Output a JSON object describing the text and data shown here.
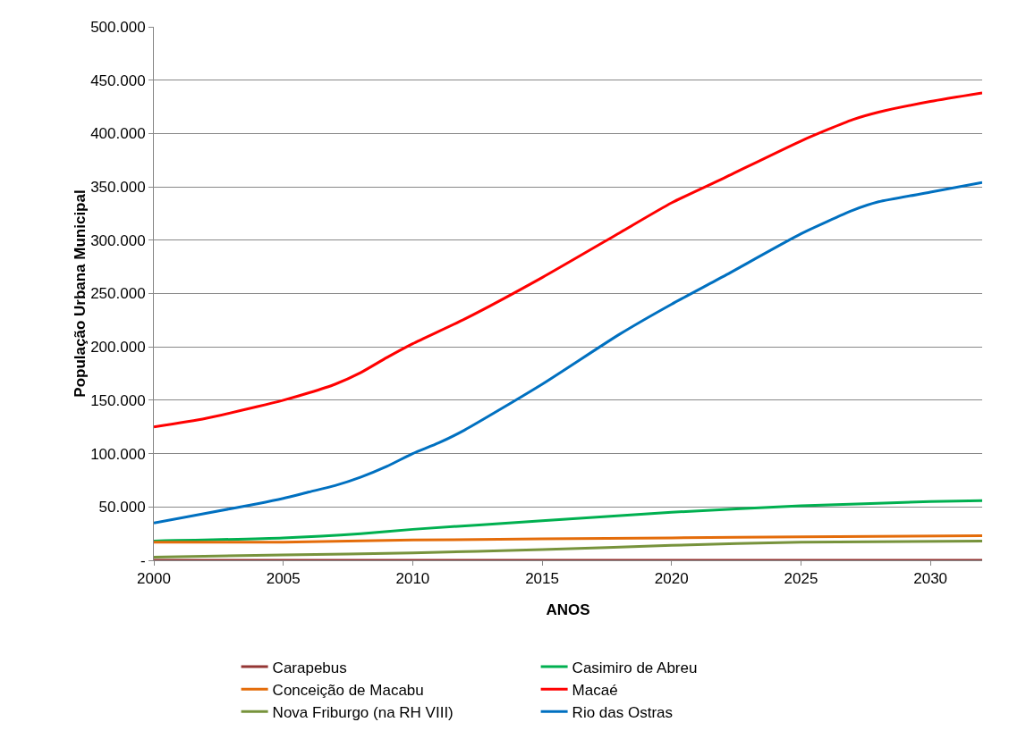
{
  "chart_data": {
    "type": "line",
    "xlabel": "ANOS",
    "ylabel": "População Urbana Municipal",
    "xlim": [
      2000,
      2032
    ],
    "xticks": [
      2000,
      2005,
      2010,
      2015,
      2020,
      2025,
      2030
    ],
    "ylim": [
      0,
      500000
    ],
    "yticks": [
      {
        "value": 0,
        "label": "-"
      },
      {
        "value": 50000,
        "label": "50.000"
      },
      {
        "value": 100000,
        "label": "100.000"
      },
      {
        "value": 150000,
        "label": "150.000"
      },
      {
        "value": 200000,
        "label": "200.000"
      },
      {
        "value": 250000,
        "label": "250.000"
      },
      {
        "value": 300000,
        "label": "300.000"
      },
      {
        "value": 350000,
        "label": "350.000"
      },
      {
        "value": 400000,
        "label": "400.000"
      },
      {
        "value": 450000,
        "label": "450.000"
      },
      {
        "value": 500000,
        "label": "500.000"
      }
    ],
    "grid": "y",
    "legend": "bottom",
    "marker": "none",
    "line_style": "solid",
    "series": [
      {
        "name": "Carapebus",
        "color": "#943634",
        "x": [
          2000,
          2010,
          2020,
          2032
        ],
        "values": [
          0,
          0,
          0,
          0
        ]
      },
      {
        "name": "Casimiro de Abreu",
        "color": "#00b050",
        "x": [
          2000,
          2005,
          2008,
          2010,
          2015,
          2020,
          2025,
          2030,
          2032
        ],
        "values": [
          18000,
          21000,
          25000,
          29000,
          37000,
          45000,
          51000,
          55000,
          56000
        ]
      },
      {
        "name": "Conceição de Macabu",
        "color": "#e46c0a",
        "x": [
          2000,
          2005,
          2010,
          2015,
          2020,
          2025,
          2032
        ],
        "values": [
          17000,
          17000,
          19000,
          20000,
          21000,
          22000,
          23000
        ]
      },
      {
        "name": "Macaé",
        "color": "#ff0000",
        "x": [
          2000,
          2002,
          2004,
          2005,
          2006,
          2007,
          2008,
          2009,
          2010,
          2012,
          2015,
          2018,
          2020,
          2022,
          2025,
          2027,
          2028,
          2030,
          2032
        ],
        "values": [
          125000,
          133000,
          144000,
          150000,
          157000,
          165000,
          176000,
          190000,
          203000,
          226000,
          265000,
          307000,
          335000,
          358000,
          393000,
          413000,
          420000,
          430000,
          438000
        ]
      },
      {
        "name": "Nova Friburgo (na RH VIII)",
        "color": "#77933c",
        "x": [
          2000,
          2005,
          2010,
          2015,
          2020,
          2025,
          2032
        ],
        "values": [
          3000,
          5000,
          7000,
          10000,
          14000,
          17000,
          18000
        ]
      },
      {
        "name": "Rio das Ostras",
        "color": "#0070c0",
        "x": [
          2000,
          2002,
          2004,
          2005,
          2006,
          2007,
          2008,
          2009,
          2010,
          2011,
          2012,
          2015,
          2018,
          2020,
          2022,
          2025,
          2027,
          2028,
          2030,
          2032
        ],
        "values": [
          35000,
          44000,
          53000,
          58000,
          64000,
          70000,
          78000,
          88000,
          100000,
          110000,
          122000,
          165000,
          212000,
          240000,
          266000,
          306000,
          328000,
          336000,
          345000,
          354000
        ]
      }
    ]
  }
}
